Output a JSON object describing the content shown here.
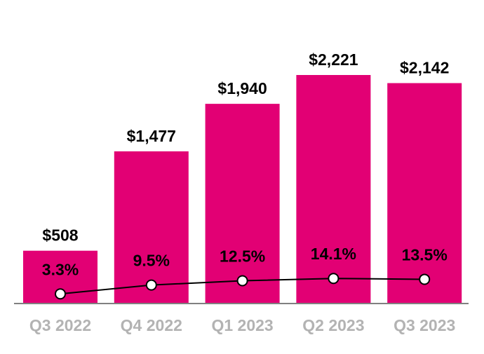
{
  "chart_data": {
    "type": "bar",
    "categories": [
      "Q3 2022",
      "Q4 2022",
      "Q1 2023",
      "Q2 2023",
      "Q3 2023"
    ],
    "series": [
      {
        "type": "bar",
        "values": [
          508,
          1477,
          1940,
          2221,
          2142
        ],
        "labels": [
          "$508",
          "$1,477",
          "$1,940",
          "$2,221",
          "$2,142"
        ]
      },
      {
        "type": "line",
        "values": [
          3.3,
          9.5,
          12.5,
          14.1,
          13.5
        ],
        "labels": [
          "3.3%",
          "9.5%",
          "12.5%",
          "14.1%",
          "13.5%"
        ]
      }
    ],
    "title": "",
    "grid": false,
    "colors": {
      "bar": "#E20074",
      "line": "#000000",
      "marker_fill": "#ffffff",
      "axis_labels": "#b3b3b3",
      "axis_line": "#808080"
    }
  }
}
